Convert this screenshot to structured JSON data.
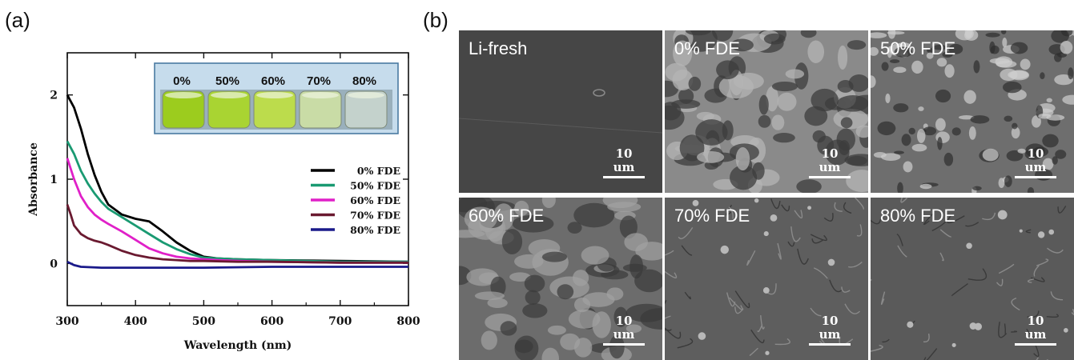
{
  "panel_a_label": "(a)",
  "panel_b_label": "(b)",
  "chart_data": {
    "type": "line",
    "title": "",
    "xlabel": "Wavelength (nm)",
    "ylabel": "Absorbance",
    "xlim": [
      300,
      800
    ],
    "ylim": [
      -0.5,
      2.5
    ],
    "x_ticks": [
      300,
      400,
      500,
      600,
      700,
      800
    ],
    "y_ticks": [
      0,
      1,
      2
    ],
    "grid": false,
    "legend_position": "right",
    "series": [
      {
        "name": "0% FDE",
        "color": "#000000",
        "x": [
          300,
          310,
          320,
          330,
          340,
          350,
          360,
          380,
          400,
          420,
          440,
          460,
          480,
          500,
          520,
          550,
          600,
          700,
          800
        ],
        "y": [
          2.0,
          1.85,
          1.6,
          1.3,
          1.05,
          0.85,
          0.7,
          0.58,
          0.53,
          0.5,
          0.38,
          0.25,
          0.15,
          0.08,
          0.06,
          0.05,
          0.04,
          0.03,
          0.02
        ]
      },
      {
        "name": "50% FDE",
        "color": "#1a9a72",
        "x": [
          300,
          310,
          320,
          330,
          340,
          350,
          360,
          380,
          400,
          420,
          440,
          460,
          480,
          500,
          520,
          550,
          600,
          700,
          800
        ],
        "y": [
          1.45,
          1.3,
          1.1,
          0.95,
          0.83,
          0.73,
          0.65,
          0.55,
          0.45,
          0.35,
          0.25,
          0.17,
          0.11,
          0.07,
          0.06,
          0.05,
          0.04,
          0.02,
          0.02
        ]
      },
      {
        "name": "60% FDE",
        "color": "#e020c8",
        "x": [
          300,
          310,
          320,
          330,
          340,
          350,
          360,
          380,
          400,
          420,
          440,
          460,
          480,
          500,
          520,
          550,
          600,
          700,
          800
        ],
        "y": [
          1.25,
          1.0,
          0.8,
          0.67,
          0.58,
          0.52,
          0.47,
          0.38,
          0.28,
          0.18,
          0.12,
          0.08,
          0.06,
          0.05,
          0.04,
          0.03,
          0.02,
          0.01,
          0.01
        ]
      },
      {
        "name": "70% FDE",
        "color": "#6a1a30",
        "x": [
          300,
          305,
          310,
          320,
          330,
          340,
          350,
          360,
          380,
          400,
          420,
          440,
          460,
          480,
          500,
          550,
          600,
          700,
          800
        ],
        "y": [
          0.7,
          0.58,
          0.45,
          0.35,
          0.3,
          0.27,
          0.25,
          0.22,
          0.15,
          0.1,
          0.07,
          0.05,
          0.04,
          0.03,
          0.03,
          0.02,
          0.02,
          0.01,
          0.01
        ]
      },
      {
        "name": "80% FDE",
        "color": "#1a1a8a",
        "x": [
          300,
          310,
          320,
          350,
          400,
          450,
          500,
          600,
          700,
          800
        ],
        "y": [
          0.02,
          -0.02,
          -0.04,
          -0.05,
          -0.05,
          -0.05,
          -0.05,
          -0.04,
          -0.04,
          -0.04
        ]
      }
    ]
  },
  "inset": {
    "labels": [
      "0%",
      "50%",
      "60%",
      "70%",
      "80%"
    ],
    "vial_colors": [
      "#9ccc1e",
      "#a9d432",
      "#bcdc4c",
      "#c9dca6",
      "#c4d2cc"
    ]
  },
  "sem_tiles": [
    {
      "label": "Li-fresh",
      "scale": "10 um",
      "tone": "#464646",
      "texture": "smooth"
    },
    {
      "label": "0% FDE",
      "scale": "10 um",
      "tone": "#8a8a8a",
      "texture": "porous"
    },
    {
      "label": "50% FDE",
      "scale": "10 um",
      "tone": "#6e6e6e",
      "texture": "mesh"
    },
    {
      "label": "60% FDE",
      "scale": "10 um",
      "tone": "#6c6c6c",
      "texture": "flakes"
    },
    {
      "label": "70% FDE",
      "scale": "10 um",
      "tone": "#5e5e5e",
      "texture": "flat"
    },
    {
      "label": "80% FDE",
      "scale": "10 um",
      "tone": "#5a5a5a",
      "texture": "flat2"
    }
  ]
}
